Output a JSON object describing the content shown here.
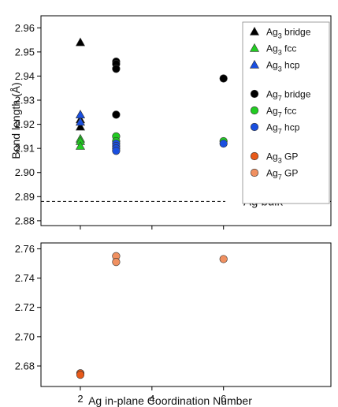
{
  "chart_data": {
    "type": "scatter",
    "xlabel": "Ag in-plane Coordination Number",
    "ylabel": "Bond length (Å)",
    "x_ticks": [
      2,
      4,
      6
    ],
    "xlim": [
      0.9,
      9.0
    ],
    "panels": [
      {
        "id": "upper",
        "ylim": [
          2.878,
          2.965
        ],
        "y_ticks": [
          "2.88",
          "2.89",
          "2.90",
          "2.91",
          "2.92",
          "2.93",
          "2.94",
          "2.95",
          "2.96"
        ]
      },
      {
        "id": "lower",
        "ylim": [
          2.666,
          2.764
        ],
        "y_ticks": [
          "2.68",
          "2.70",
          "2.72",
          "2.74",
          "2.76"
        ]
      }
    ],
    "reference_line": {
      "label": "Ag bulk",
      "y": 2.888
    },
    "series": [
      {
        "key": "ag3_bridge",
        "name": "Ag",
        "subscript": "3",
        "suffix": " bridge",
        "marker": "triangle",
        "color": "#000000",
        "panel": "upper",
        "points": [
          [
            2,
            2.954
          ],
          [
            2,
            2.924
          ],
          [
            2,
            2.922
          ],
          [
            2,
            2.919
          ]
        ]
      },
      {
        "key": "ag3_fcc",
        "name": "Ag",
        "subscript": "3",
        "suffix": " fcc",
        "marker": "triangle",
        "color": "#22cc22",
        "panel": "upper",
        "points": [
          [
            2,
            2.914
          ],
          [
            2,
            2.913
          ],
          [
            2,
            2.911
          ]
        ]
      },
      {
        "key": "ag3_hcp",
        "name": "Ag",
        "subscript": "3",
        "suffix": " hcp",
        "marker": "triangle",
        "color": "#1a4fe0",
        "panel": "upper",
        "points": [
          [
            2,
            2.924
          ],
          [
            2,
            2.921
          ]
        ]
      },
      {
        "key": "ag7_bridge",
        "name": "Ag",
        "subscript": "7",
        "suffix": " bridge",
        "marker": "circle",
        "color": "#000000",
        "panel": "upper",
        "points": [
          [
            3,
            2.946
          ],
          [
            3,
            2.945
          ],
          [
            3,
            2.943
          ],
          [
            3,
            2.924
          ],
          [
            6,
            2.939
          ]
        ]
      },
      {
        "key": "ag7_fcc",
        "name": "Ag",
        "subscript": "7",
        "suffix": " fcc",
        "marker": "circle",
        "color": "#22cc22",
        "panel": "upper",
        "points": [
          [
            3,
            2.915
          ],
          [
            3,
            2.913
          ],
          [
            6,
            2.913
          ]
        ]
      },
      {
        "key": "ag7_hcp",
        "name": "Ag",
        "subscript": "7",
        "suffix": " hcp",
        "marker": "circle",
        "color": "#1a4fe0",
        "panel": "upper",
        "points": [
          [
            3,
            2.912
          ],
          [
            3,
            2.911
          ],
          [
            3,
            2.91
          ],
          [
            3,
            2.909
          ],
          [
            6,
            2.912
          ]
        ]
      },
      {
        "key": "ag3_gp",
        "name": "Ag",
        "subscript": "3",
        "suffix": " GP",
        "marker": "circle",
        "color": "#e85a1a",
        "panel": "lower",
        "points": [
          [
            2,
            2.675
          ],
          [
            2,
            2.674
          ]
        ]
      },
      {
        "key": "ag7_gp",
        "name": "Ag",
        "subscript": "7",
        "suffix": " GP",
        "marker": "circle",
        "color": "#f09060",
        "panel": "lower",
        "points": [
          [
            3,
            2.755
          ],
          [
            3,
            2.751
          ],
          [
            6,
            2.753
          ]
        ]
      }
    ],
    "legend": {
      "position": "top-right",
      "groups": [
        [
          "ag3_bridge",
          "ag3_fcc",
          "ag3_hcp"
        ],
        [
          "ag7_bridge",
          "ag7_fcc",
          "ag7_hcp"
        ],
        [
          "ag3_gp",
          "ag7_gp"
        ]
      ]
    }
  }
}
